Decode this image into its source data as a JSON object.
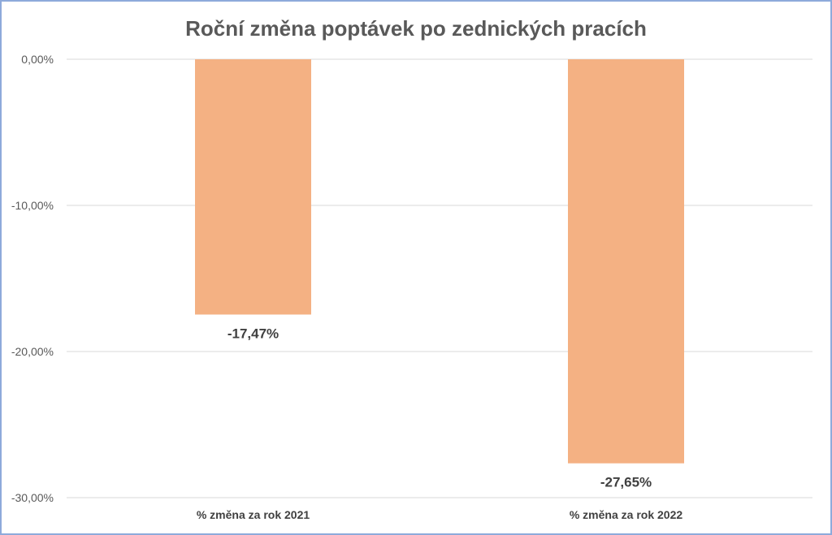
{
  "chart_data": {
    "type": "bar",
    "title": "Roční změna poptávek po zednických pracích",
    "categories": [
      "% změna za rok 2021",
      "% změna za rok 2022"
    ],
    "values": [
      -17.47,
      -27.65
    ],
    "data_labels": [
      "-17,47%",
      "-27,65%"
    ],
    "xlabel": "",
    "ylabel": "",
    "ylim": [
      -30,
      0
    ],
    "yticks": [
      0,
      -10,
      -20,
      -30
    ],
    "ytick_labels": [
      "0,00%",
      "-10,00%",
      "-20,00%",
      "-30,00%"
    ],
    "grid": true,
    "legend": "none",
    "bar_color": "#F4B183"
  }
}
